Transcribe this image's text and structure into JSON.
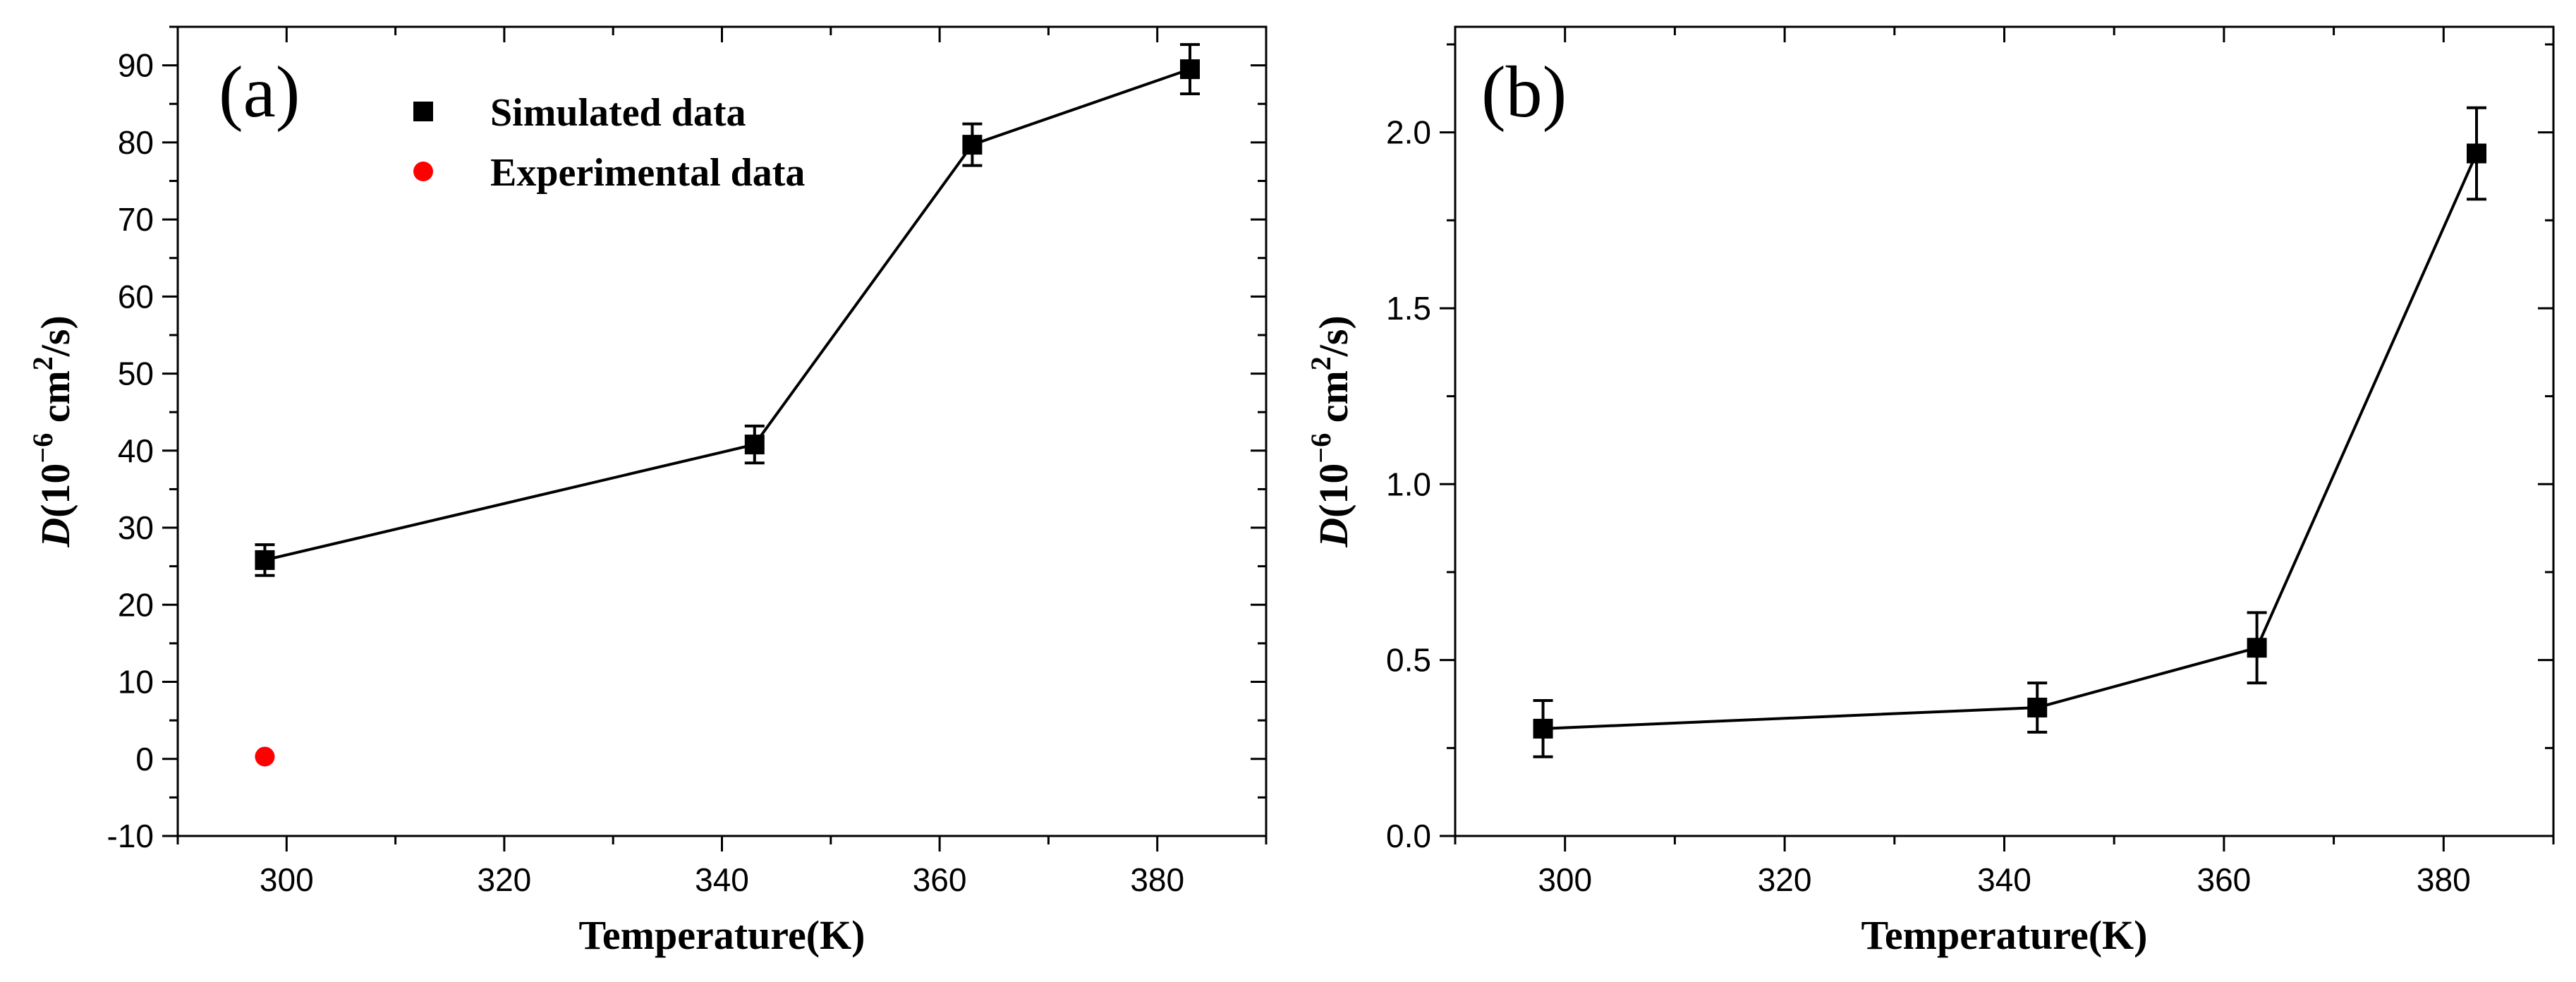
{
  "chart_data": [
    {
      "type": "line",
      "panel_label": "(a)",
      "xlabel": "Temperature(K)",
      "ylabel": {
        "var": "D",
        "prefix": "(10",
        "exp1": "−6",
        "mid": " cm",
        "exp2": "2",
        "suffix": "/s)"
      },
      "xlim": [
        290,
        390
      ],
      "ylim": [
        -10,
        95
      ],
      "xticks": [
        300,
        320,
        340,
        360,
        380
      ],
      "xtick_labels": [
        "300",
        "320",
        "340",
        "360",
        "380"
      ],
      "yticks": [
        -10,
        0,
        10,
        20,
        30,
        40,
        50,
        60,
        70,
        80,
        90
      ],
      "ytick_labels": [
        "-10",
        "0",
        "10",
        "20",
        "30",
        "40",
        "50",
        "60",
        "70",
        "80",
        "90"
      ],
      "legend_position": "top-center",
      "series": [
        {
          "name": "Simulated data",
          "marker": "square",
          "color": "#000000",
          "line": true,
          "x": [
            298,
            343,
            363,
            383
          ],
          "y": [
            25.8,
            40.8,
            79.7,
            89.5
          ],
          "err": [
            2.0,
            2.4,
            2.7,
            3.2
          ]
        },
        {
          "name": "Experimental data",
          "marker": "circle",
          "color": "#ff0000",
          "line": false,
          "x": [
            298
          ],
          "y": [
            0.3
          ],
          "err": [
            0
          ]
        }
      ]
    },
    {
      "type": "line",
      "panel_label": "(b)",
      "xlabel": "Temperature(K)",
      "ylabel": {
        "var": "D",
        "prefix": "(10",
        "exp1": "−6",
        "mid": " cm",
        "exp2": "2",
        "suffix": "/s)"
      },
      "xlim": [
        290,
        390
      ],
      "ylim": [
        0,
        2.3
      ],
      "xticks": [
        300,
        320,
        340,
        360,
        380
      ],
      "xtick_labels": [
        "300",
        "320",
        "340",
        "360",
        "380"
      ],
      "yticks": [
        0,
        0.5,
        1.0,
        1.5,
        2.0
      ],
      "ytick_labels": [
        "0.0",
        "0.5",
        "1.0",
        "1.5",
        "2.0"
      ],
      "series": [
        {
          "name": "Simulated data",
          "marker": "square",
          "color": "#000000",
          "line": true,
          "x": [
            298,
            343,
            363,
            383
          ],
          "y": [
            0.305,
            0.365,
            0.535,
            1.94
          ],
          "err": [
            0.08,
            0.07,
            0.1,
            0.13
          ]
        }
      ]
    }
  ]
}
